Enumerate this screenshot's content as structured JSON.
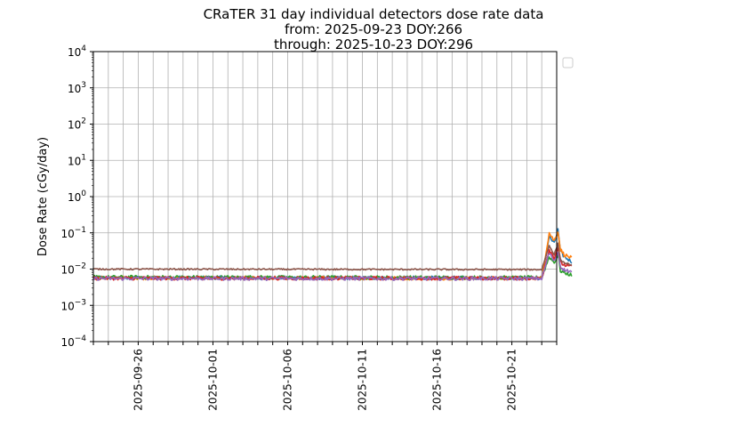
{
  "chart_data": {
    "type": "line",
    "title_lines": [
      "CRaTER 31 day individual detectors dose rate data",
      "from: 2025-09-23 DOY:266",
      "through: 2025-10-23 DOY:296"
    ],
    "xlabel": "",
    "ylabel": "Dose Rate (cGy/day)",
    "y_scale": "log",
    "ylim": [
      0.0001,
      10000
    ],
    "xlim": [
      "2025-09-23",
      "2025-10-24"
    ],
    "y_ticks": [
      {
        "value": 10000,
        "base": "10",
        "exp": "4"
      },
      {
        "value": 1000,
        "base": "10",
        "exp": "3"
      },
      {
        "value": 100,
        "base": "10",
        "exp": "2"
      },
      {
        "value": 10,
        "base": "10",
        "exp": "1"
      },
      {
        "value": 1,
        "base": "10",
        "exp": "0"
      },
      {
        "value": 0.1,
        "base": "10",
        "exp": "−1"
      },
      {
        "value": 0.01,
        "base": "10",
        "exp": "−2"
      },
      {
        "value": 0.001,
        "base": "10",
        "exp": "−3"
      },
      {
        "value": 0.0001,
        "base": "10",
        "exp": "−4"
      }
    ],
    "x_tick_labels": [
      "2025-09-26",
      "2025-10-01",
      "2025-10-06",
      "2025-10-11",
      "2025-10-16",
      "2025-10-21"
    ],
    "grid": true,
    "legend": {
      "placement": "upper-left-outside",
      "entries": []
    },
    "series_colors": [
      "#1f77b4",
      "#ff7f0e",
      "#2ca02c",
      "#d62728",
      "#9467bd",
      "#8c564b"
    ],
    "series": [
      {
        "color": "#1f77b4",
        "points": [
          [
            "2025-09-23",
            0.0058
          ],
          [
            "2025-10-23",
            0.0057
          ],
          [
            "2025-10-23T12:00",
            0.08
          ],
          [
            "2025-10-23T20:00",
            0.05
          ],
          [
            "2025-10-24T02:00",
            0.12
          ],
          [
            "2025-10-24T06:00",
            0.03
          ],
          [
            "2025-10-24T12:00",
            0.022
          ],
          [
            "2025-10-24T23:59",
            0.016
          ]
        ]
      },
      {
        "color": "#ff7f0e",
        "points": [
          [
            "2025-09-23",
            0.0057
          ],
          [
            "2025-10-23",
            0.0056
          ],
          [
            "2025-10-23T12:00",
            0.1
          ],
          [
            "2025-10-23T20:00",
            0.06
          ],
          [
            "2025-10-24T02:00",
            0.11
          ],
          [
            "2025-10-24T06:00",
            0.035
          ],
          [
            "2025-10-24T12:00",
            0.025
          ],
          [
            "2025-10-24T23:59",
            0.02
          ]
        ]
      },
      {
        "color": "#2ca02c",
        "points": [
          [
            "2025-09-23",
            0.006
          ],
          [
            "2025-10-23",
            0.0058
          ],
          [
            "2025-10-23T12:00",
            0.022
          ],
          [
            "2025-10-23T20:00",
            0.015
          ],
          [
            "2025-10-24T02:00",
            0.025
          ],
          [
            "2025-10-24T06:00",
            0.009
          ],
          [
            "2025-10-24T12:00",
            0.008
          ],
          [
            "2025-10-24T23:59",
            0.0068
          ]
        ]
      },
      {
        "color": "#d62728",
        "points": [
          [
            "2025-09-23",
            0.0056
          ],
          [
            "2025-10-23",
            0.0056
          ],
          [
            "2025-10-23T12:00",
            0.035
          ],
          [
            "2025-10-23T20:00",
            0.02
          ],
          [
            "2025-10-24T02:00",
            0.04
          ],
          [
            "2025-10-24T06:00",
            0.015
          ],
          [
            "2025-10-24T12:00",
            0.013
          ],
          [
            "2025-10-24T23:59",
            0.0115
          ]
        ]
      },
      {
        "color": "#9467bd",
        "points": [
          [
            "2025-09-23",
            0.0055
          ],
          [
            "2025-10-23",
            0.0055
          ],
          [
            "2025-10-23T12:00",
            0.028
          ],
          [
            "2025-10-23T20:00",
            0.016
          ],
          [
            "2025-10-24T02:00",
            0.03
          ],
          [
            "2025-10-24T06:00",
            0.012
          ],
          [
            "2025-10-24T12:00",
            0.0095
          ],
          [
            "2025-10-24T23:59",
            0.0085
          ]
        ]
      },
      {
        "color": "#8c564b",
        "points": [
          [
            "2025-09-23",
            0.01
          ],
          [
            "2025-10-23",
            0.0097
          ],
          [
            "2025-10-23T12:00",
            0.045
          ],
          [
            "2025-10-23T20:00",
            0.025
          ],
          [
            "2025-10-24T02:00",
            0.05
          ],
          [
            "2025-10-24T06:00",
            0.018
          ],
          [
            "2025-10-24T12:00",
            0.015
          ],
          [
            "2025-10-24T23:59",
            0.013
          ]
        ]
      }
    ]
  }
}
